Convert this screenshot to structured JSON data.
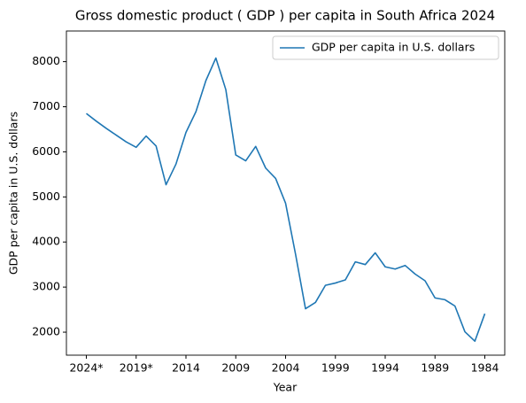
{
  "chart_data": {
    "type": "line",
    "title": "Gross domestic product ( GDP ) per capita in South Africa 2024",
    "x_label": "Year",
    "y_label": "GDP per capita in U.S. dollars",
    "categories": [
      "2024*",
      null,
      null,
      null,
      null,
      "2019*",
      null,
      null,
      null,
      null,
      "2014",
      null,
      null,
      null,
      null,
      "2009",
      null,
      null,
      null,
      null,
      "2004",
      null,
      null,
      null,
      null,
      "1999",
      null,
      null,
      null,
      null,
      "1994",
      null,
      null,
      null,
      null,
      "1989",
      null,
      null,
      null,
      null,
      "1984"
    ],
    "series": [
      {
        "name": "GDP per capita in U.S. dollars",
        "color": "#1f77b4",
        "values": [
          6850,
          6680,
          6520,
          6370,
          6220,
          6100,
          6350,
          6130,
          5270,
          5730,
          6430,
          6890,
          7580,
          8080,
          7380,
          5930,
          5800,
          6120,
          5640,
          5410,
          4860,
          3730,
          2520,
          2660,
          3040,
          3090,
          3160,
          3560,
          3500,
          3760,
          3450,
          3400,
          3480,
          3290,
          3140,
          2760,
          2720,
          2580,
          2010,
          1800,
          2410
        ]
      }
    ],
    "ylim": [
      1490,
      8680
    ],
    "yticks": [
      2000,
      3000,
      4000,
      5000,
      6000,
      7000,
      8000
    ],
    "legend": "upper right",
    "grid": false
  }
}
